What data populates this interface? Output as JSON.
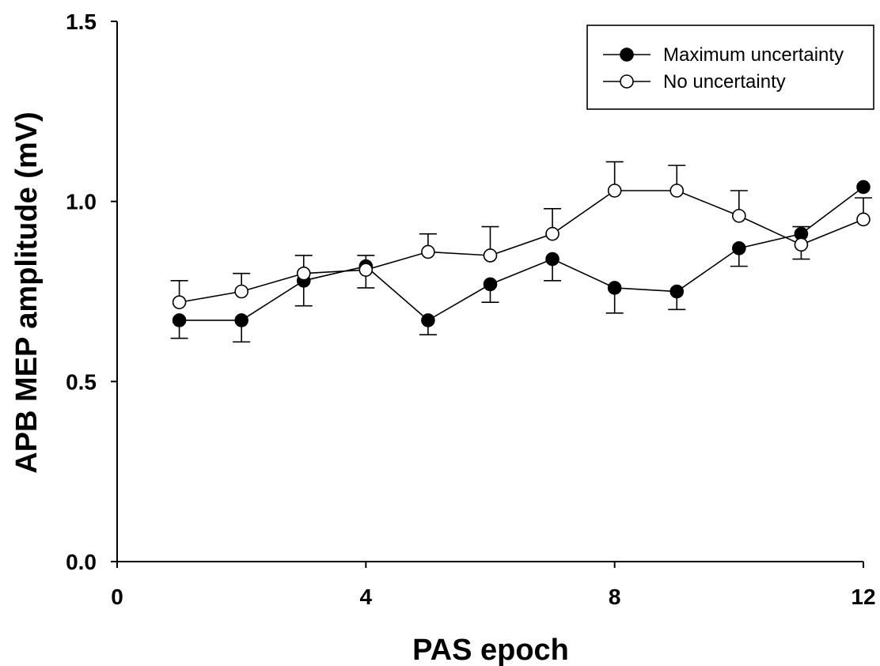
{
  "chart_data": {
    "type": "line",
    "xlabel": "PAS epoch",
    "ylabel": "APB MEP amplitude (mV)",
    "xlim": [
      0,
      12
    ],
    "ylim": [
      0.0,
      1.5
    ],
    "xticks": [
      0,
      4,
      8,
      12
    ],
    "xtick_labels": [
      "0",
      "4",
      "8",
      "12"
    ],
    "yticks": [
      0.0,
      0.5,
      1.0,
      1.5
    ],
    "ytick_labels": [
      "0.0",
      "0.5",
      "1.0",
      "1.5"
    ],
    "grid": false,
    "legend_position": "top-right",
    "x": [
      1,
      2,
      3,
      4,
      5,
      6,
      7,
      8,
      9,
      10,
      11,
      12
    ],
    "series": [
      {
        "name": "Maximum uncertainty",
        "marker": "filled-circle",
        "values": [
          0.67,
          0.67,
          0.78,
          0.82,
          0.67,
          0.77,
          0.84,
          0.76,
          0.75,
          0.87,
          0.91,
          1.04
        ],
        "error_minus": [
          0.05,
          0.06,
          0.07,
          0.06,
          0.04,
          0.05,
          0.06,
          0.07,
          0.05,
          0.05,
          0.0,
          0.0
        ],
        "error_plus": [
          0.0,
          0.0,
          0.0,
          0.03,
          0.0,
          0.0,
          0.0,
          0.0,
          0.0,
          0.0,
          0.02,
          0.0
        ]
      },
      {
        "name": "No uncertainty",
        "marker": "open-circle",
        "values": [
          0.72,
          0.75,
          0.8,
          0.81,
          0.86,
          0.85,
          0.91,
          1.03,
          1.03,
          0.96,
          0.88,
          0.95
        ],
        "error_minus": [
          0.0,
          0.0,
          0.0,
          0.0,
          0.0,
          0.0,
          0.0,
          0.0,
          0.0,
          0.0,
          0.04,
          0.0
        ],
        "error_plus": [
          0.06,
          0.05,
          0.05,
          0.0,
          0.05,
          0.08,
          0.07,
          0.08,
          0.07,
          0.07,
          0.0,
          0.06
        ]
      }
    ]
  }
}
